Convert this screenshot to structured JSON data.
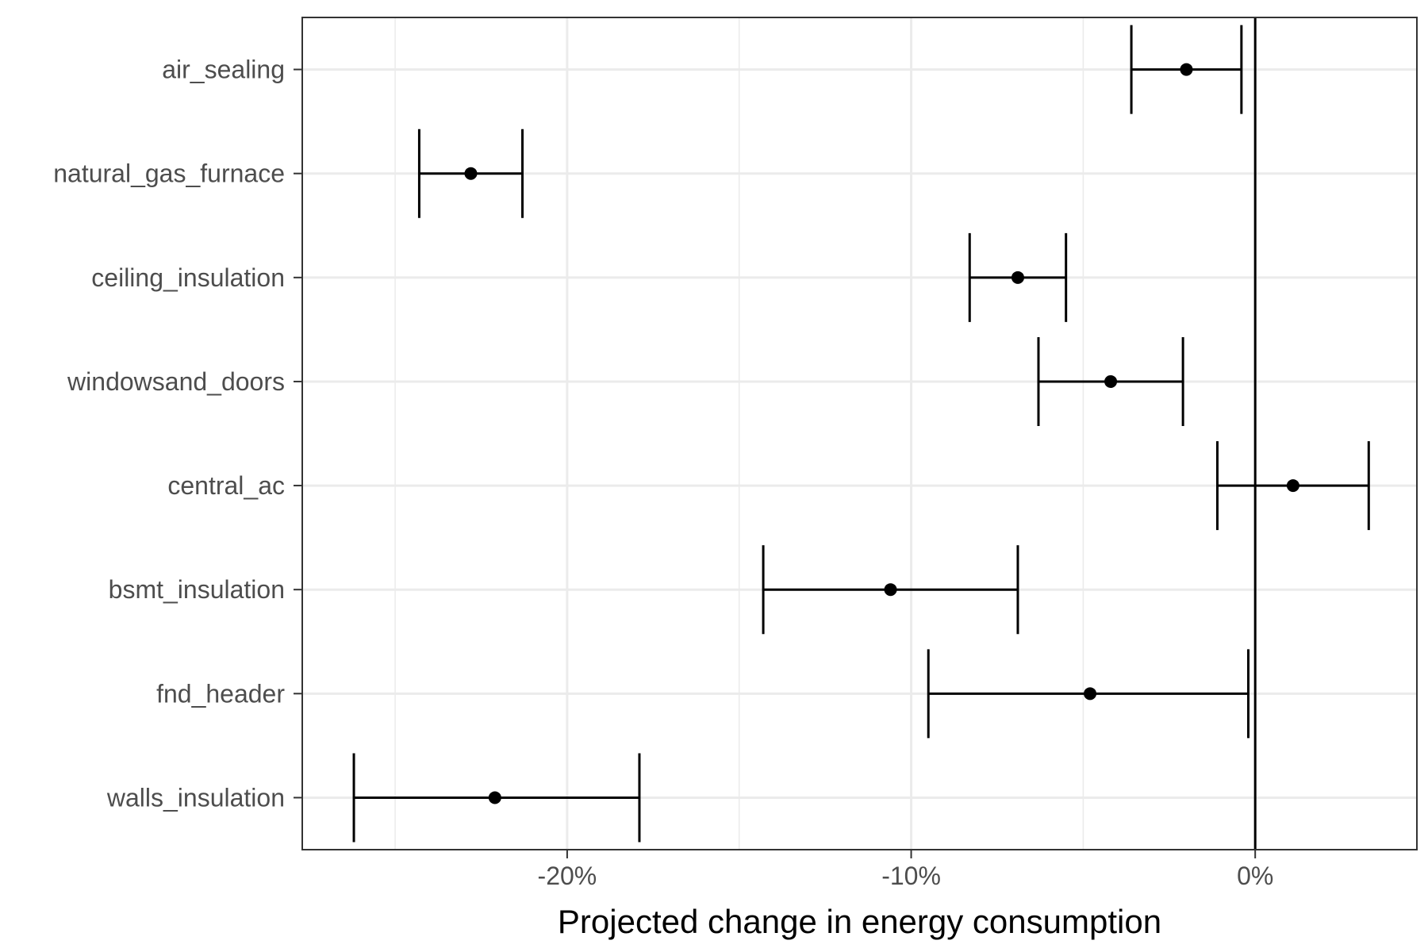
{
  "chart_data": {
    "type": "scatter",
    "title": "",
    "xlabel": "Projected change in energy consumption",
    "ylabel": "",
    "xlim": [
      -0.277,
      0.047
    ],
    "x_ticks": [
      -0.2,
      -0.1,
      0.0
    ],
    "x_tick_labels": [
      "-20%",
      "-10%",
      "0%"
    ],
    "grid": true,
    "reference_line_x": 0.0,
    "categories": [
      "air_sealing",
      "natural_gas_furnace",
      "ceiling_insulation",
      "windowsand_doors",
      "central_ac",
      "bsmt_insulation",
      "fnd_header",
      "walls_insulation"
    ],
    "estimates": [
      -0.02,
      -0.228,
      -0.069,
      -0.042,
      0.011,
      -0.106,
      -0.048,
      -0.221
    ],
    "lower": [
      -0.036,
      -0.243,
      -0.083,
      -0.063,
      -0.011,
      -0.143,
      -0.095,
      -0.262
    ],
    "upper": [
      -0.004,
      -0.213,
      -0.055,
      -0.021,
      0.033,
      -0.069,
      -0.002,
      -0.179
    ],
    "colors": {
      "marks": "#000000",
      "grid": "#ebebeb",
      "tick_text": "#4d4d4d",
      "panel_border": "#333333"
    }
  }
}
